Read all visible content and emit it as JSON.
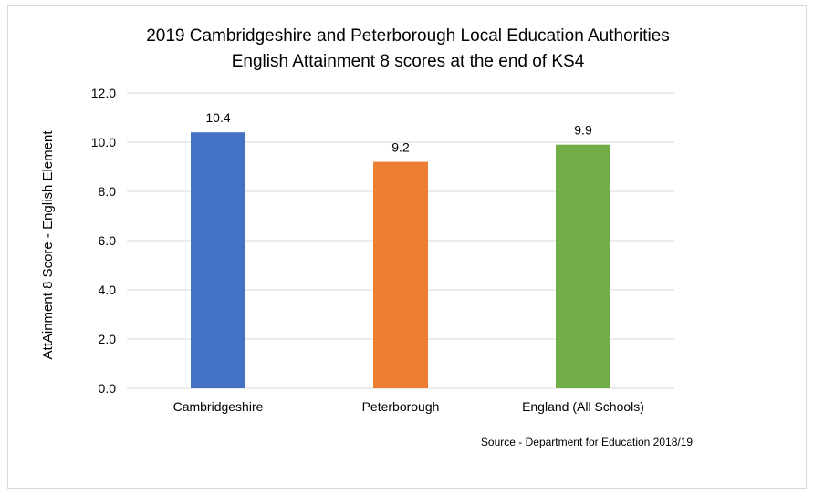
{
  "chart_data": {
    "type": "bar",
    "title_lines": [
      "2019 Cambridgeshire and Peterborough Local Education Authorities",
      "English Attainment 8 scores at the end of KS4"
    ],
    "ylabel": "AttAinment 8 Score - English Element",
    "xlabel": "",
    "categories": [
      "Cambridgeshire",
      "Peterborough",
      "England (All Schools)"
    ],
    "values": [
      10.4,
      9.2,
      9.9
    ],
    "data_labels": [
      "10.4",
      "9.2",
      "9.9"
    ],
    "colors": [
      "#4472C4",
      "#ED7D31",
      "#70AD47"
    ],
    "ylim": [
      0,
      12
    ],
    "yticks": [
      "0.0",
      "2.0",
      "4.0",
      "6.0",
      "8.0",
      "10.0",
      "12.0"
    ],
    "grid": true,
    "legend": "none",
    "source": "Source - Department for Education 2018/19"
  }
}
